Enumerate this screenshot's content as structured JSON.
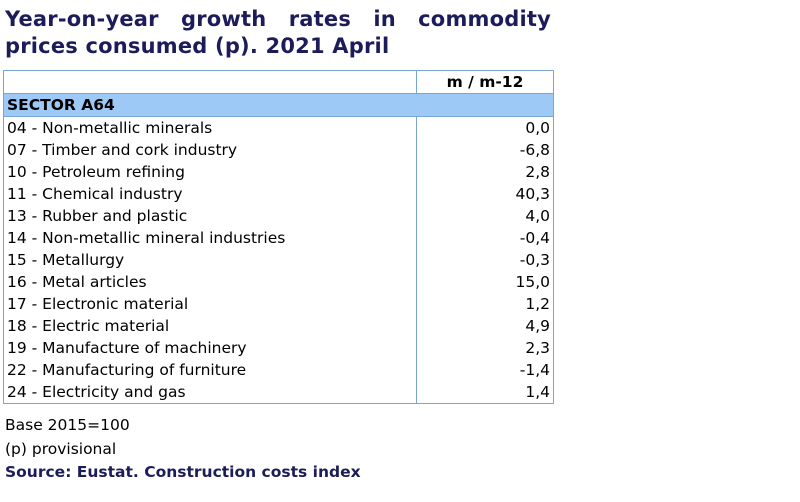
{
  "title": "Year-on-year growth rates in commodity prices consumed (p). 2021 April",
  "table": {
    "column_header": "m / m-12",
    "section": "SECTOR A64",
    "rows": [
      {
        "label": "04 - Non-metallic minerals",
        "value": "0,0"
      },
      {
        "label": "07 - Timber and cork industry",
        "value": "-6,8"
      },
      {
        "label": "10 - Petroleum refining",
        "value": "2,8"
      },
      {
        "label": "11 - Chemical industry",
        "value": "40,3"
      },
      {
        "label": "13 - Rubber and plastic",
        "value": "4,0"
      },
      {
        "label": "14 - Non-metallic mineral industries",
        "value": "-0,4"
      },
      {
        "label": "15 - Metallurgy",
        "value": "-0,3"
      },
      {
        "label": "16 - Metal articles",
        "value": "15,0"
      },
      {
        "label": "17 - Electronic material",
        "value": "1,2"
      },
      {
        "label": "18 - Electric material",
        "value": "4,9"
      },
      {
        "label": "19 - Manufacture of machinery",
        "value": "2,3"
      },
      {
        "label": "22 - Manufacturing of furniture",
        "value": "-1,4"
      },
      {
        "label": "24 - Electricity and gas",
        "value": "1,4"
      }
    ]
  },
  "notes": [
    "Base 2015=100",
    "(p) provisional"
  ],
  "source": "Source: Eustat. Construction costs index"
}
